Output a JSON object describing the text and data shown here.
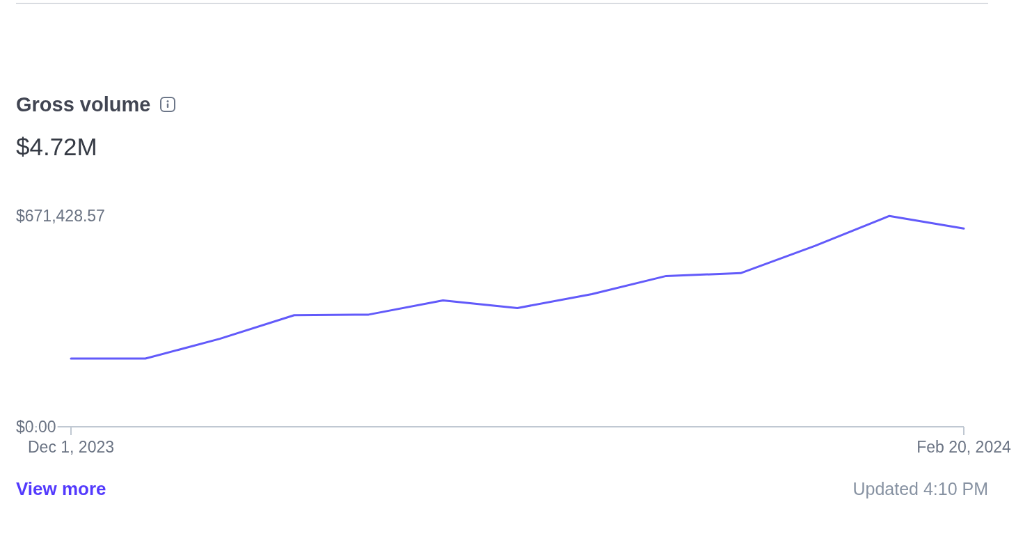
{
  "chart_data": {
    "type": "line",
    "title": "Gross volume",
    "subtitle": "$4.72M",
    "categories": [
      "Dec 1, 2023",
      null,
      null,
      null,
      null,
      null,
      null,
      null,
      null,
      null,
      null,
      null,
      "Feb 20, 2024"
    ],
    "series": [
      {
        "color": "#625afa",
        "values": [
          217000,
          217000,
          280000,
          355000,
          357000,
          402000,
          378000,
          422000,
          480000,
          489000,
          576000,
          671000,
          631000
        ]
      }
    ],
    "ylim": [
      0,
      671428.57
    ],
    "yticks": [
      {
        "value": 0,
        "label": "$0.00"
      },
      {
        "value": 671428.57,
        "label": "$671,428.57"
      }
    ],
    "line_style": "solid",
    "annotations": [
      "View more",
      "Updated 4:10 PM"
    ]
  }
}
